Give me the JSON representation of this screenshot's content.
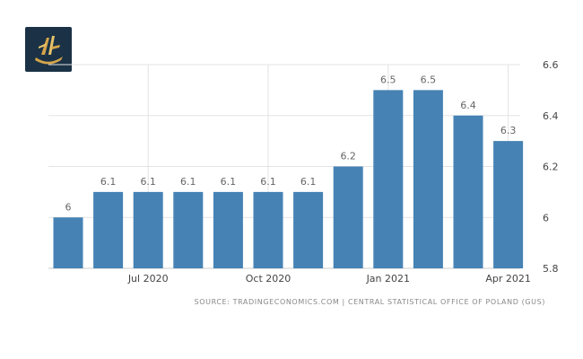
{
  "logo": {
    "name": "tradingeconomics-logo",
    "bg": "#1b3246",
    "accent": "#d6a64a"
  },
  "source_text": "SOURCE: TRADINGECONOMICS.COM | CENTRAL STATISTICAL OFFICE OF POLAND (GUS)",
  "colors": {
    "bar": "#4682b4",
    "grid": "#e3e3e3",
    "axis": "#cccccc"
  },
  "chart_data": {
    "type": "bar",
    "categories": [
      "May 2020",
      "Jun 2020",
      "Jul 2020",
      "Aug 2020",
      "Sep 2020",
      "Oct 2020",
      "Nov 2020",
      "Dec 2020",
      "Jan 2021",
      "Feb 2021",
      "Mar 2021",
      "Apr 2021"
    ],
    "values": [
      6,
      6.1,
      6.1,
      6.1,
      6.1,
      6.1,
      6.1,
      6.2,
      6.5,
      6.5,
      6.4,
      6.3
    ],
    "data_labels": [
      "6",
      "6.1",
      "6.1",
      "6.1",
      "6.1",
      "6.1",
      "6.1",
      "6.2",
      "6.5",
      "6.5",
      "6.4",
      "6.3"
    ],
    "x_tick_labels": [
      {
        "category": "Jul 2020",
        "label": "Jul 2020"
      },
      {
        "category": "Oct 2020",
        "label": "Oct 2020"
      },
      {
        "category": "Jan 2021",
        "label": "Jan 2021"
      },
      {
        "category": "Apr 2021",
        "label": "Apr 2021"
      }
    ],
    "y_ticks": [
      "5.8",
      "6",
      "6.2",
      "6.4",
      "6.6"
    ],
    "ylim": [
      5.8,
      6.6
    ],
    "grid": true,
    "y_axis_side": "right",
    "title": "",
    "xlabel": "",
    "ylabel": ""
  }
}
